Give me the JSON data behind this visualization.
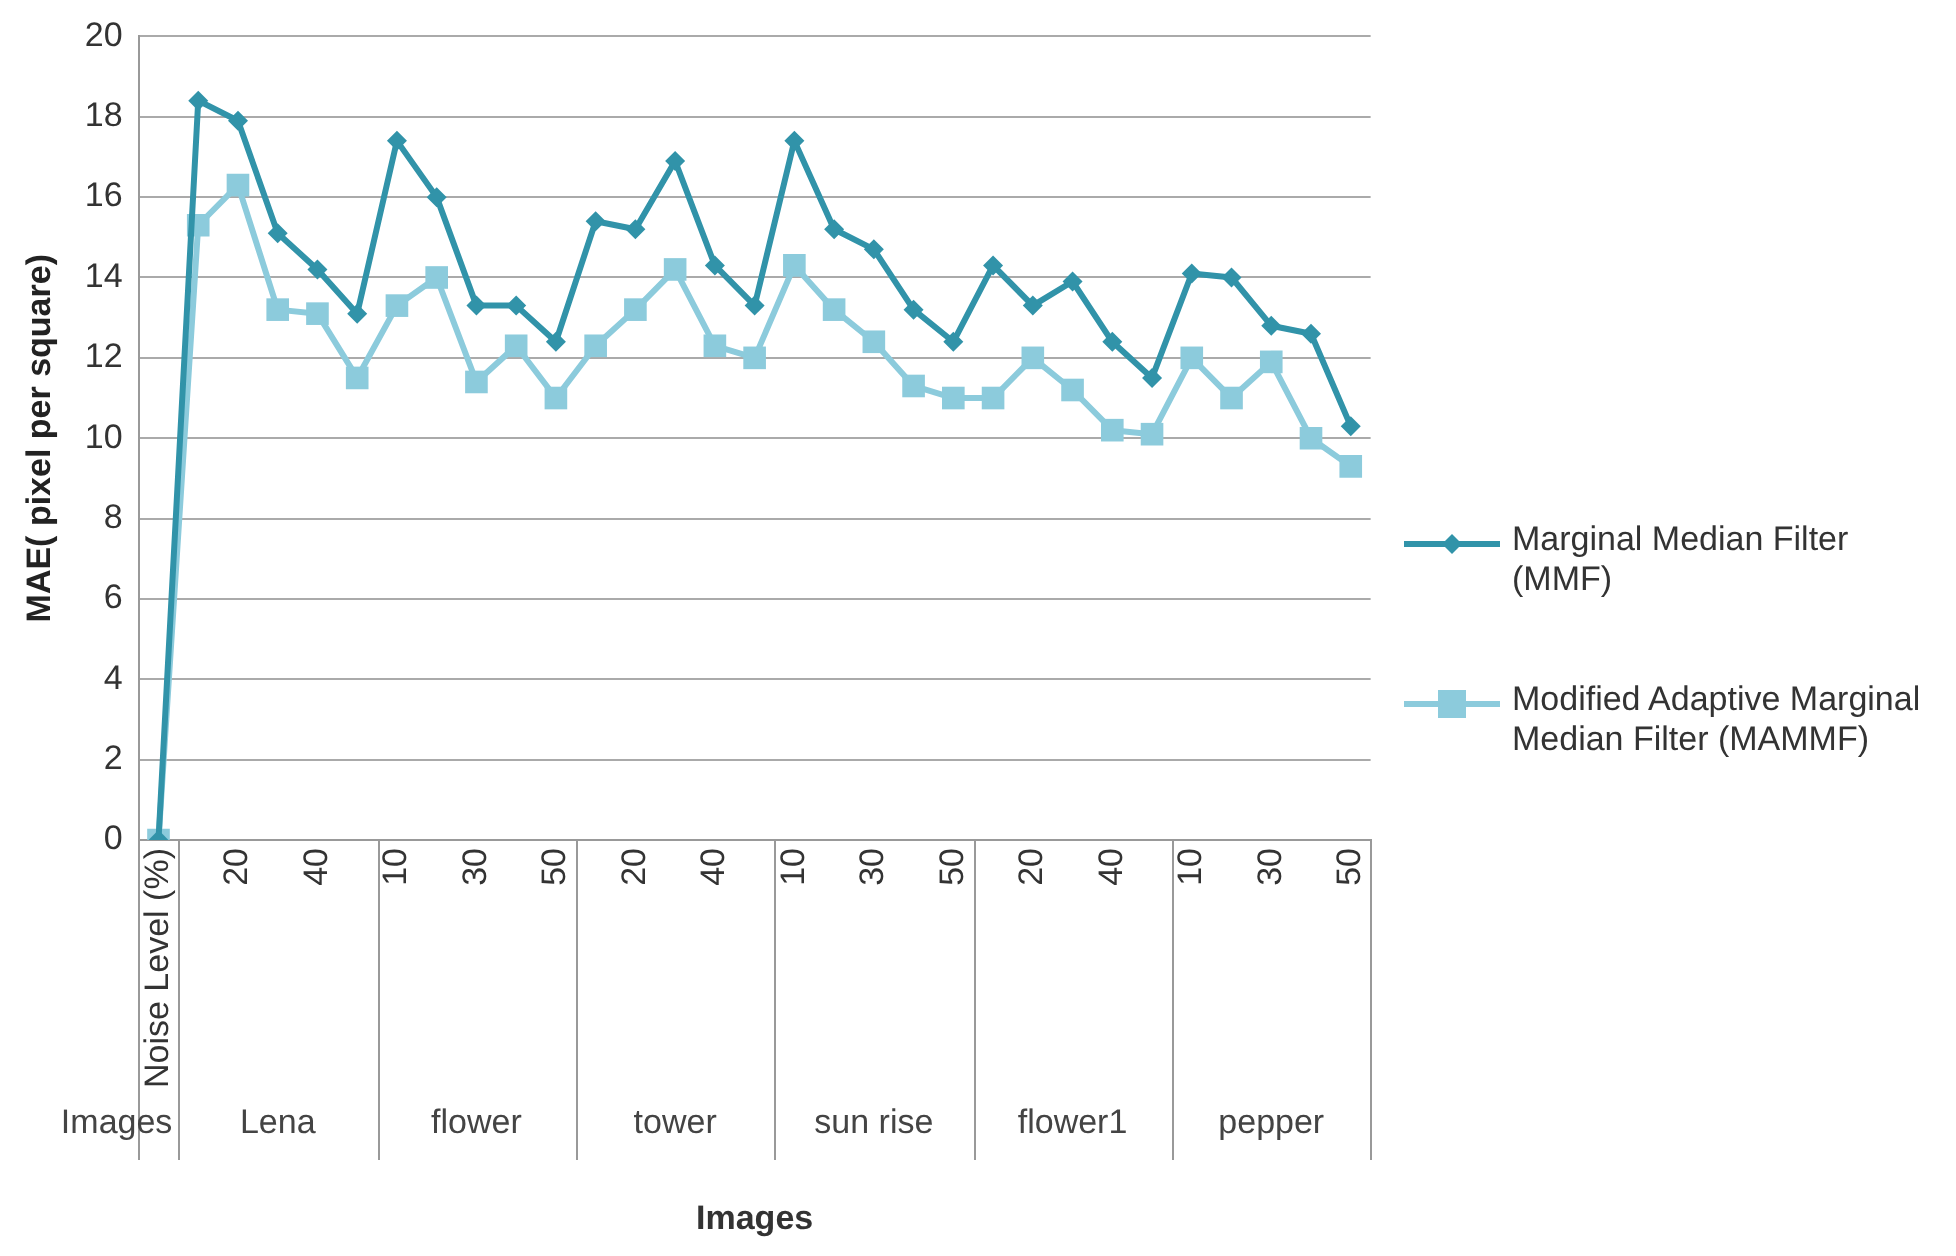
{
  "chart_data": {
    "type": "line",
    "xlabel": "Images",
    "ylabel": "MAE( pixel per square)",
    "categories": [
      "Noise Level (%)",
      null,
      "20",
      null,
      "40",
      null,
      "10",
      null,
      "30",
      null,
      "50",
      null,
      "20",
      null,
      "40",
      null,
      "10",
      null,
      "30",
      null,
      "50",
      null,
      "20",
      null,
      "40",
      null,
      "10",
      null,
      "30",
      null,
      "50"
    ],
    "annotations": [
      "Images",
      "Lena",
      "flower",
      "tower",
      "sun rise",
      "flower1",
      "pepper"
    ],
    "ylim": [
      0,
      20
    ],
    "yticks": [
      0,
      2,
      4,
      6,
      8,
      10,
      12,
      14,
      16,
      18,
      20
    ],
    "grid": "y",
    "legend": "right",
    "series": [
      {
        "name": "Marginal Median Filter (MMF)",
        "color": "#3193a9",
        "marker": "diamond",
        "values": [
          0,
          18.4,
          17.9,
          15.1,
          14.2,
          13.1,
          17.4,
          16.0,
          13.3,
          13.3,
          12.4,
          15.4,
          15.2,
          16.9,
          14.3,
          13.3,
          17.4,
          15.2,
          14.7,
          13.2,
          12.4,
          14.3,
          13.3,
          13.9,
          12.4,
          11.5,
          14.1,
          14.0,
          12.8,
          12.6,
          10.3
        ]
      },
      {
        "name": "Modified Adaptive Marginal Median Filter (MAMMF)",
        "color": "#8ccbdc",
        "marker": "square",
        "values": [
          0,
          15.3,
          16.3,
          13.2,
          13.1,
          11.5,
          13.3,
          14.0,
          11.4,
          12.3,
          11.0,
          12.3,
          13.2,
          14.2,
          12.3,
          12.0,
          14.3,
          13.2,
          12.4,
          11.3,
          11.0,
          11.0,
          12.0,
          11.2,
          10.2,
          10.1,
          12.0,
          11.0,
          11.9,
          10.0,
          9.3
        ]
      }
    ]
  }
}
